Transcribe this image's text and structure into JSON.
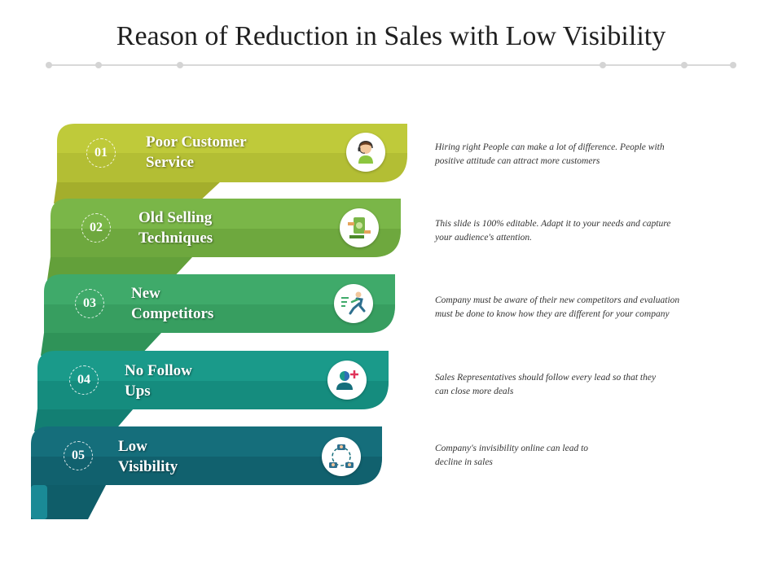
{
  "title": "Reason of Reduction in Sales with Low Visibility",
  "colors": {
    "band1": "#bfca3a",
    "band2": "#7ab648",
    "band3": "#3faa6a",
    "band4": "#1a9a8a",
    "band5": "#156e7b"
  },
  "items": [
    {
      "number": "01",
      "line1": "Poor Customer",
      "line2": "Service",
      "icon": "customer-service-agent-icon",
      "description_line1": "Hiring right People can make a lot of difference. People with",
      "description_line2": "positive attitude  can attract  more customers"
    },
    {
      "number": "02",
      "line1": "Old Selling",
      "line2": "Techniques",
      "icon": "money-exchange-icon",
      "description_line1": "This slide is 100% editable. Adapt it to your needs and capture",
      "description_line2": "your audience's attention."
    },
    {
      "number": "03",
      "line1": "New",
      "line2": "Competitors",
      "icon": "running-competitor-icon",
      "description_line1": "Company must be aware of their new competitors and evaluation",
      "description_line2": "must  be done to know  how they are different for your company"
    },
    {
      "number": "04",
      "line1": "No Follow",
      "line2": "Ups",
      "icon": "user-add-icon",
      "description_line1": "Sales Representatives  should follow every lead so that they",
      "description_line2": "can close more  deals"
    },
    {
      "number": "05",
      "line1": "Low",
      "line2": "Visibility",
      "icon": "team-network-icon",
      "description_line1": "Company's invisibility online can lead to",
      "description_line2": "decline in sales"
    }
  ]
}
